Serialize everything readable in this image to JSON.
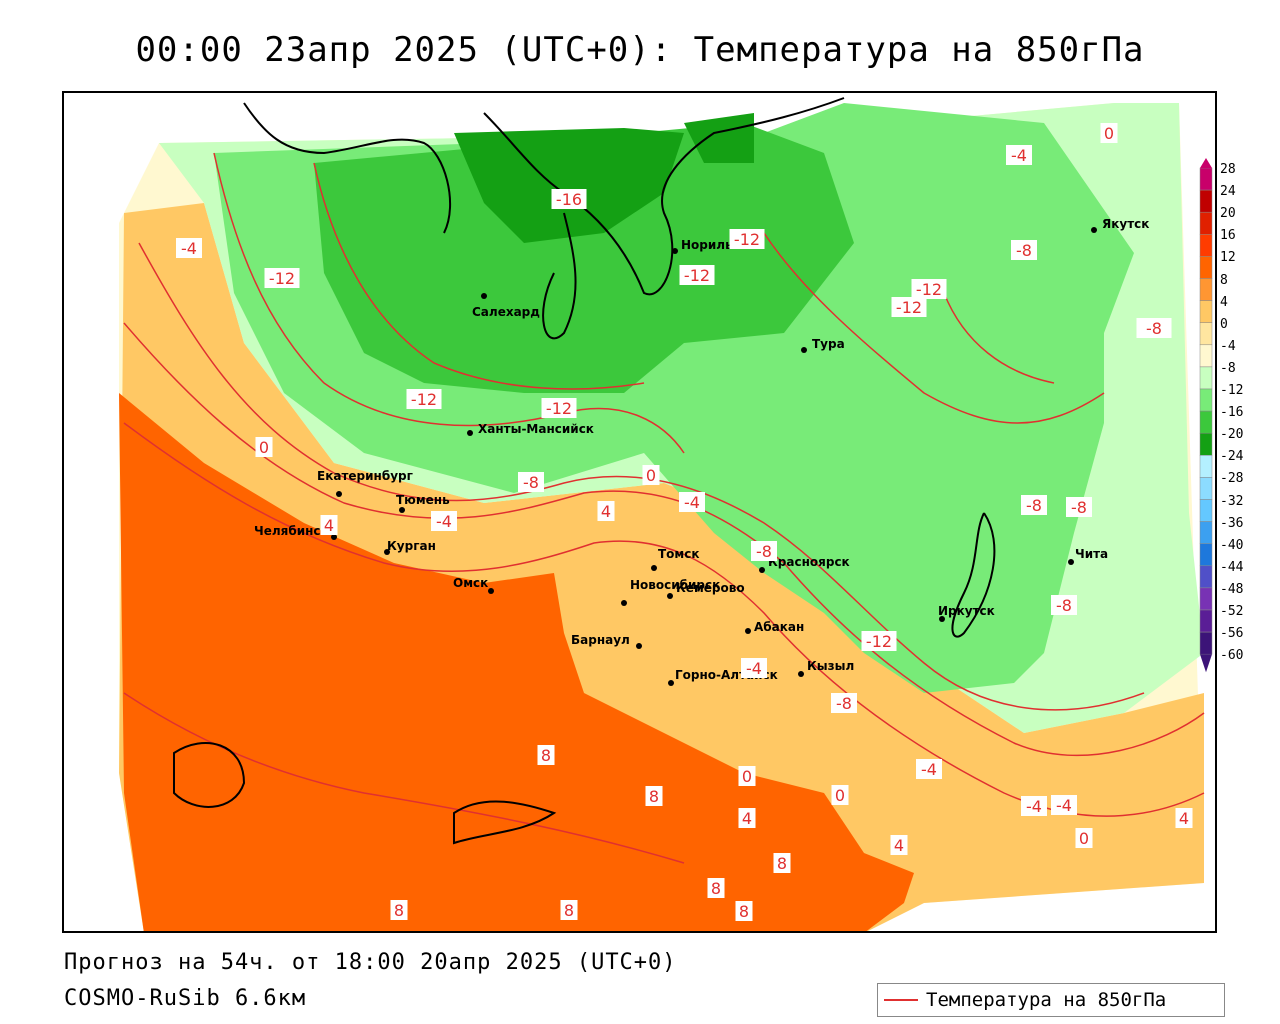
{
  "title": "00:00 23апр 2025 (UTC+0): Температура на 850гПа",
  "footer": {
    "forecast": "Прогноз на 54ч. от 18:00 20апр 2025 (UTC+0)",
    "model": "COSMO-RuSib 6.6км"
  },
  "legend": {
    "label": "Температура на 850гПа",
    "line_color": "#e03030"
  },
  "colorbar": {
    "levels": [
      "28",
      "24",
      "20",
      "16",
      "12",
      "8",
      "4",
      "0",
      "-4",
      "-8",
      "-12",
      "-16",
      "-20",
      "-24",
      "-28",
      "-32",
      "-36",
      "-40",
      "-44",
      "-48",
      "-52",
      "-56",
      "-60"
    ],
    "colors": [
      "#c8006a",
      "#c00000",
      "#e02000",
      "#ff3c00",
      "#ff6400",
      "#ff9632",
      "#ffc864",
      "#ffe6a0",
      "#fff8d0",
      "#c8ffc0",
      "#78eb78",
      "#3cc83c",
      "#14a014",
      "#b4f0ff",
      "#8cdcff",
      "#64c8ff",
      "#3ca0f0",
      "#1e78dc",
      "#5050c8",
      "#7832b4",
      "#5a1e96",
      "#3c1478"
    ]
  },
  "cities": [
    {
      "name": "Якутск"
    },
    {
      "name": "Норильск"
    },
    {
      "name": "Салехард"
    },
    {
      "name": "Тура"
    },
    {
      "name": "Ханты-Мансийск"
    },
    {
      "name": "Екатеринбург"
    },
    {
      "name": "Тюмень"
    },
    {
      "name": "Челябинск"
    },
    {
      "name": "Курган"
    },
    {
      "name": "Омск"
    },
    {
      "name": "Новосибирск"
    },
    {
      "name": "Томск"
    },
    {
      "name": "Кемерово"
    },
    {
      "name": "Красноярск"
    },
    {
      "name": "Барнаул"
    },
    {
      "name": "Абакан"
    },
    {
      "name": "Горно-Алтайск"
    },
    {
      "name": "Кызыл"
    },
    {
      "name": "Иркутск"
    },
    {
      "name": "Чита"
    }
  ],
  "contour_labels": [
    "0",
    "-4",
    "-16",
    "-12",
    "-12",
    "-12",
    "-12",
    "-12",
    "-12",
    "-12",
    "-12",
    "-8",
    "-8",
    "-4",
    "-8",
    "0",
    "4",
    "-4",
    "-4",
    "-8",
    "4",
    "0",
    "-8",
    "-8",
    "-12",
    "-4",
    "-8",
    "-8",
    "-4",
    "8",
    "8",
    "0",
    "4",
    "0",
    "-4",
    "-4",
    "4",
    "8",
    "8",
    "8",
    "8",
    "8",
    "0",
    "4"
  ],
  "zones": {
    "hot": "#ff6400",
    "warm": "#ffc864",
    "mild": "#ffe6a0",
    "neutral": "#fff8d0",
    "cool": "#c8ffc0",
    "cold": "#78eb78",
    "colder": "#3cc83c",
    "coldest": "#14a014",
    "isotherm": "#e03030"
  }
}
